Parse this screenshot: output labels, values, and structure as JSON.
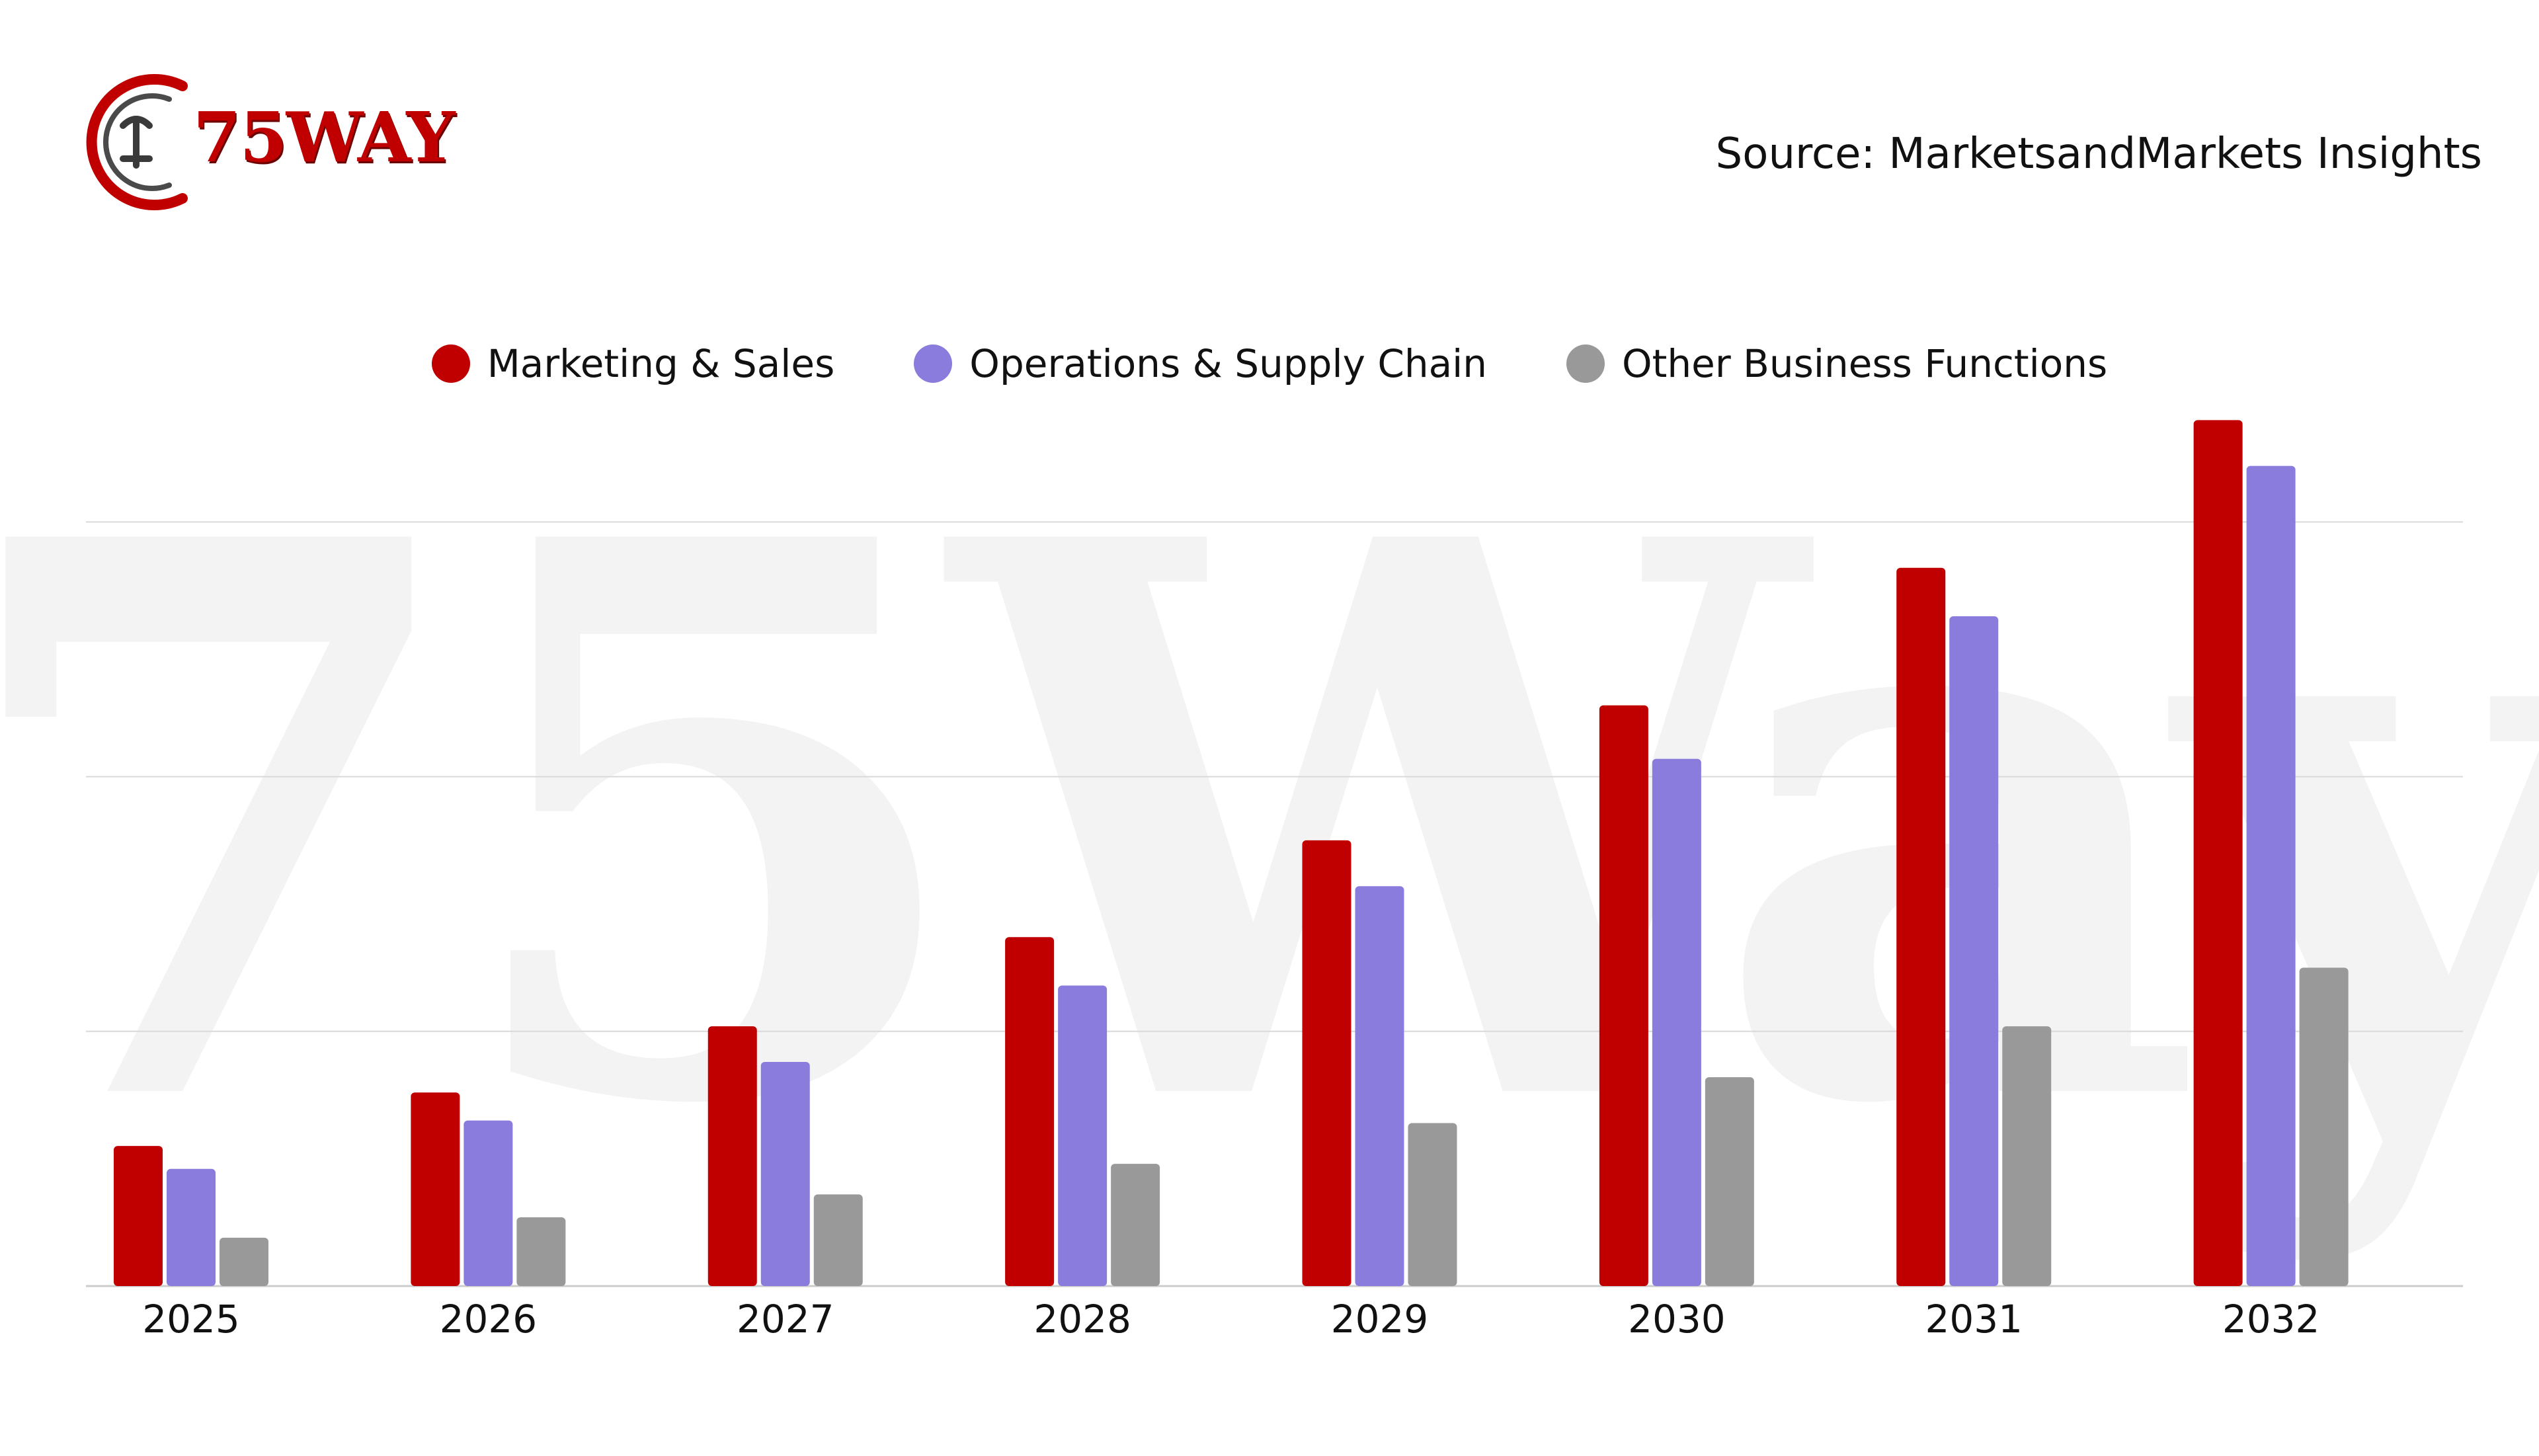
{
  "brand": {
    "logo_text": "75WAY",
    "watermark": "75Way"
  },
  "source": "Source: MarketsandMarkets Insights",
  "colors": {
    "marketing": "#c00000",
    "operations": "#8a7cdc",
    "other": "#999999",
    "grid": "#d9d9d9",
    "watermark": "#f3f3f3"
  },
  "chart_data": {
    "type": "bar",
    "title": "",
    "xlabel": "",
    "ylabel": "",
    "categories": [
      "2025",
      "2026",
      "2027",
      "2028",
      "2029",
      "2030",
      "2031",
      "2032"
    ],
    "series": [
      {
        "name": "Marketing & Sales",
        "values": [
          0.55,
          0.76,
          1.02,
          1.37,
          1.75,
          2.28,
          2.82,
          3.4
        ]
      },
      {
        "name": "Operations & Supply Chain",
        "values": [
          0.46,
          0.65,
          0.88,
          1.18,
          1.57,
          2.07,
          2.63,
          3.22
        ]
      },
      {
        "name": "Other Business Functions",
        "values": [
          0.19,
          0.27,
          0.36,
          0.48,
          0.64,
          0.82,
          1.02,
          1.25
        ]
      }
    ],
    "ylim": [
      0,
      3.6
    ],
    "gridlines": [
      1,
      2,
      3
    ],
    "legend_position": "top-center",
    "y_tick_labels_visible": false
  }
}
